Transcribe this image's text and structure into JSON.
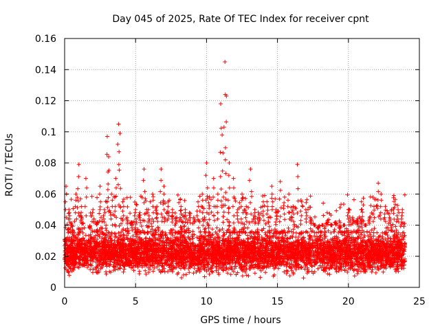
{
  "chart_data": {
    "type": "scatter",
    "title": "Day 045 of 2025, Rate Of TEC Index for receiver cpnt",
    "xlabel": "GPS time / hours",
    "ylabel": "ROTI / TECUs",
    "xlim": [
      0,
      25
    ],
    "ylim": [
      0,
      0.16
    ],
    "xticks": [
      0,
      5,
      10,
      15,
      20,
      25
    ],
    "yticks": [
      0,
      0.02,
      0.04,
      0.06,
      0.08,
      0.1,
      0.12,
      0.14,
      0.16
    ],
    "xtick_labels": [
      "0",
      "5",
      "10",
      "15",
      "20",
      "25"
    ],
    "ytick_labels": [
      "0",
      "0.02",
      "0.04",
      "0.06",
      "0.08",
      "0.1",
      "0.12",
      "0.14",
      "0.16"
    ],
    "grid": true,
    "marker": "+",
    "marker_color": "#ff0000",
    "series": [
      {
        "name": "ROTI",
        "x": [
          0.1,
          0.3,
          0.5,
          0.8,
          1.0,
          1.2,
          1.5,
          1.8,
          2.0,
          2.3,
          2.5,
          2.8,
          3.0,
          3.1,
          3.3,
          3.6,
          3.8,
          3.9,
          4.1,
          4.4,
          4.7,
          5.0,
          5.3,
          5.6,
          5.9,
          6.2,
          6.5,
          6.8,
          7.0,
          7.3,
          7.6,
          7.9,
          8.2,
          8.5,
          8.8,
          9.1,
          9.4,
          9.7,
          10.0,
          10.2,
          10.5,
          10.8,
          11.0,
          11.1,
          11.3,
          11.4,
          11.6,
          11.9,
          12.2,
          12.5,
          12.8,
          13.1,
          13.4,
          13.7,
          14.0,
          14.3,
          14.6,
          14.9,
          15.2,
          15.5,
          15.8,
          16.1,
          16.4,
          16.7,
          17.0,
          17.3,
          17.6,
          17.9,
          18.2,
          18.5,
          18.8,
          19.1,
          19.4,
          19.7,
          20.0,
          20.3,
          20.6,
          20.9,
          21.2,
          21.5,
          21.8,
          22.1,
          22.3,
          22.6,
          22.9,
          23.2,
          23.5,
          23.8
        ],
        "y": [
          0.065,
          0.05,
          0.04,
          0.06,
          0.079,
          0.045,
          0.07,
          0.038,
          0.05,
          0.042,
          0.065,
          0.05,
          0.097,
          0.084,
          0.06,
          0.07,
          0.105,
          0.099,
          0.055,
          0.045,
          0.042,
          0.05,
          0.048,
          0.076,
          0.05,
          0.06,
          0.052,
          0.076,
          0.065,
          0.055,
          0.05,
          0.045,
          0.052,
          0.05,
          0.048,
          0.045,
          0.055,
          0.06,
          0.08,
          0.058,
          0.07,
          0.06,
          0.118,
          0.098,
          0.145,
          0.123,
          0.08,
          0.07,
          0.05,
          0.06,
          0.052,
          0.076,
          0.05,
          0.045,
          0.055,
          0.052,
          0.065,
          0.05,
          0.068,
          0.058,
          0.06,
          0.052,
          0.079,
          0.055,
          0.05,
          0.045,
          0.04,
          0.038,
          0.04,
          0.042,
          0.04,
          0.042,
          0.038,
          0.04,
          0.05,
          0.045,
          0.043,
          0.044,
          0.04,
          0.045,
          0.052,
          0.067,
          0.06,
          0.052,
          0.045,
          0.059,
          0.05,
          0.05
        ]
      }
    ],
    "dense_band": {
      "name": "ROTI bulk scatter",
      "x_range": [
        0,
        24
      ],
      "y_range": [
        0.005,
        0.04
      ],
      "y_center": 0.02
    }
  }
}
